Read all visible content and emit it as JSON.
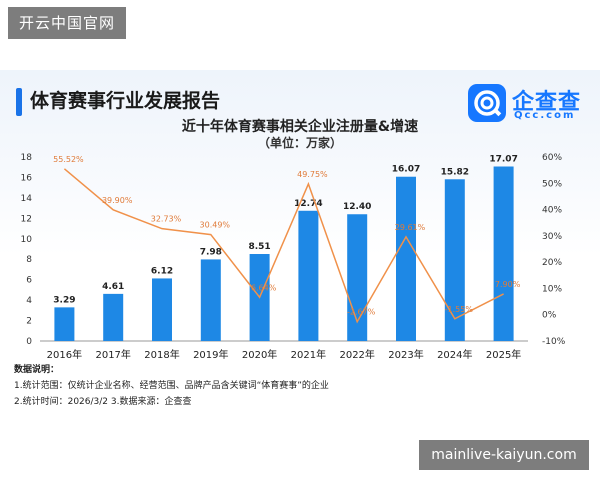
{
  "watermark_top": "开云中国官网",
  "watermark_bottom": "mainlive-kaiyun.com",
  "report_title": "体育赛事行业发展报告",
  "logo": {
    "name": "企查查",
    "domain": "Qcc.com"
  },
  "notes": {
    "heading": "数据说明：",
    "line1": "1.统计范围：仅统计企业名称、经营范围、品牌产品含关键词“体育赛事”的企业",
    "line2": "2.统计时间：2026/3/2 3.数据来源：企查查"
  },
  "colors": {
    "bar": "#1e88e5",
    "line": "#f0914a",
    "label": "#e07b39",
    "accent": "#1677ff"
  },
  "chart_data": {
    "type": "bar",
    "title": "近十年体育赛事相关企业注册量&增速",
    "subtitle": "（单位：万家）",
    "categories": [
      "2016年",
      "2017年",
      "2018年",
      "2019年",
      "2020年",
      "2021年",
      "2022年",
      "2023年",
      "2024年",
      "2025年"
    ],
    "series": [
      {
        "type": "bar",
        "axis": "left",
        "values": [
          3.29,
          4.61,
          6.12,
          7.98,
          8.51,
          12.74,
          12.4,
          16.07,
          15.82,
          17.07
        ],
        "labels": [
          "3.29",
          "4.61",
          "6.12",
          "7.98",
          "8.51",
          "12.74",
          "12.40",
          "16.07",
          "15.82",
          "17.07"
        ]
      },
      {
        "type": "line",
        "axis": "right",
        "values": [
          55.52,
          39.9,
          32.73,
          30.49,
          6.64,
          49.75,
          -2.67,
          29.61,
          -1.55,
          7.9
        ],
        "labels": [
          "55.52%",
          "39.90%",
          "32.73%",
          "30.49%",
          "6.64%",
          "49.75%",
          "-2.67%",
          "29.61%",
          "-1.55%",
          "7.90%"
        ]
      }
    ],
    "y_left": {
      "min": 0,
      "max": 18,
      "ticks": [
        "0",
        "2",
        "4",
        "6",
        "8",
        "10",
        "12",
        "14",
        "16",
        "18"
      ]
    },
    "y_right": {
      "min": -10,
      "max": 60,
      "ticks": [
        "-10%",
        "0%",
        "10%",
        "20%",
        "30%",
        "40%",
        "50%",
        "60%"
      ]
    },
    "grid": false,
    "legend": "none"
  }
}
